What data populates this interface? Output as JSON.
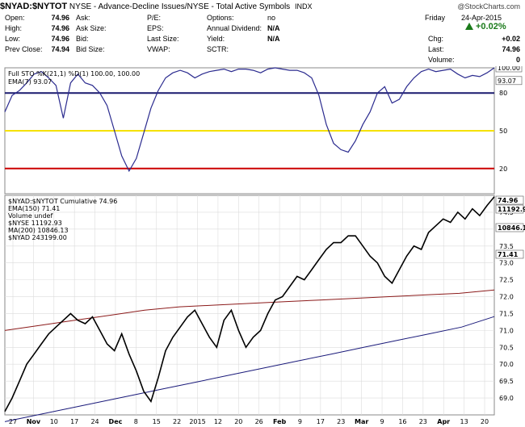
{
  "header": {
    "symbol": "$NYAD:$NYTOT",
    "description": "NYSE - Advance-Decline Issues/NYSE - Total Active Symbols",
    "exchange": "INDX",
    "watermark": "@StockCharts.com"
  },
  "quote": {
    "left": [
      {
        "label": "Open:",
        "value": "74.96"
      },
      {
        "label": "High:",
        "value": "74.96"
      },
      {
        "label": "Low:",
        "value": "74.96"
      },
      {
        "label": "Prev Close:",
        "value": "74.94"
      }
    ],
    "mid1": [
      {
        "label": "Ask:",
        "value": ""
      },
      {
        "label": "Ask Size:",
        "value": ""
      },
      {
        "label": "Bid:",
        "value": ""
      },
      {
        "label": "Bid Size:",
        "value": ""
      }
    ],
    "mid2": [
      {
        "label": "P/E:",
        "value": ""
      },
      {
        "label": "EPS:",
        "value": ""
      },
      {
        "label": "Last Size:",
        "value": ""
      },
      {
        "label": "VWAP:",
        "value": ""
      }
    ],
    "mid3": [
      {
        "label": "Options:",
        "value": "no"
      },
      {
        "label": "Annual Dividend:",
        "value": "N/A"
      },
      {
        "label": "Yield:",
        "value": "N/A"
      },
      {
        "label": "SCTR:",
        "value": ""
      }
    ],
    "right": {
      "day": "Friday",
      "date": "24-Apr-2015",
      "chg_pct": "+0.02%",
      "rows": [
        {
          "label": "Chg:",
          "value": "+0.02"
        },
        {
          "label": "Last:",
          "value": "74.96"
        },
        {
          "label": "Volume:",
          "value": "0"
        }
      ]
    }
  },
  "colors": {
    "sto": "#2b2b8f",
    "price": "#000000",
    "ema150": "#1a1a7a",
    "ma200": "#8b1a1a",
    "nyse": "#e8d08a",
    "line80": "#1a1a6e",
    "line50": "#f5e100",
    "line20": "#cc0000",
    "grid": "#dcdcdc"
  },
  "chart_data": [
    {
      "type": "line",
      "panel": "stochastic",
      "legend": [
        "Full STO %K(21,1) %D(1) 100.00, 100.00",
        "EMA(7) 93.07"
      ],
      "ylim": [
        0,
        100
      ],
      "yticks": [
        "80",
        "50",
        "20"
      ],
      "reference_lines": [
        80,
        50,
        20
      ],
      "tags": [
        "100.00",
        "93.07"
      ],
      "series": [
        {
          "name": "Full STO %K(21,1) %D(1)",
          "values": [
            65,
            78,
            82,
            88,
            95,
            97,
            92,
            86,
            60,
            88,
            95,
            88,
            86,
            80,
            70,
            50,
            30,
            18,
            28,
            48,
            68,
            82,
            92,
            96,
            98,
            96,
            92,
            95,
            97,
            98,
            99,
            97,
            99,
            99,
            98,
            96,
            99,
            100,
            99,
            98,
            98,
            96,
            92,
            78,
            55,
            40,
            35,
            33,
            42,
            55,
            65,
            80,
            85,
            72,
            75,
            85,
            92,
            97,
            99,
            97,
            98,
            99,
            95,
            92,
            94,
            93,
            96,
            100
          ]
        }
      ]
    },
    {
      "type": "line",
      "panel": "price",
      "legend": [
        "$NYAD:$NYTOT Cumulative 74.96",
        "EMA(150) 71.41",
        "Volume undef",
        "$NYSE 11192.93",
        "MA(200) 10846.13",
        "$NYAD 243199.00"
      ],
      "ylim": [
        68.5,
        75.0
      ],
      "yticks": [
        "74.5",
        "74.0",
        "73.5",
        "73.0",
        "72.5",
        "72.0",
        "71.5",
        "71.0",
        "70.5",
        "70.0",
        "69.5",
        "69.0"
      ],
      "tags": [
        "74.96",
        "11192.9",
        "10846.1",
        "71.41"
      ],
      "x_tick_labels": [
        "27",
        "Nov",
        "10",
        "17",
        "24",
        "Dec",
        "8",
        "15",
        "22",
        "2015",
        "12",
        "20",
        "26",
        "Feb",
        "9",
        "17",
        "23",
        "Mar",
        "9",
        "16",
        "23",
        "Apr",
        "13",
        "20"
      ],
      "series": [
        {
          "name": "$NYAD:$NYTOT Cumulative",
          "values": [
            68.6,
            69.0,
            69.5,
            70.0,
            70.3,
            70.6,
            70.9,
            71.1,
            71.3,
            71.5,
            71.3,
            71.2,
            71.4,
            71.0,
            70.6,
            70.4,
            70.9,
            70.3,
            69.8,
            69.2,
            68.9,
            69.6,
            70.4,
            70.8,
            71.1,
            71.4,
            71.6,
            71.2,
            70.8,
            70.5,
            71.3,
            71.6,
            71.0,
            70.5,
            70.8,
            71.0,
            71.5,
            71.9,
            72.0,
            72.3,
            72.6,
            72.5,
            72.8,
            73.1,
            73.4,
            73.6,
            73.6,
            73.8,
            73.8,
            73.5,
            73.2,
            73.0,
            72.6,
            72.4,
            72.8,
            73.2,
            73.5,
            73.4,
            73.9,
            74.1,
            74.3,
            74.2,
            74.5,
            74.3,
            74.6,
            74.4,
            74.7,
            74.96
          ]
        },
        {
          "name": "EMA(150)",
          "values": [
            68.3,
            68.5,
            68.7,
            68.9,
            69.1,
            69.3,
            69.5,
            69.7,
            69.9,
            70.1,
            70.3,
            70.5,
            70.7,
            70.9,
            71.1,
            71.41
          ]
        },
        {
          "name": "MA(200)",
          "values": [
            71.0,
            71.15,
            71.3,
            71.45,
            71.6,
            71.7,
            71.75,
            71.8,
            71.85,
            71.9,
            71.95,
            72.0,
            72.05,
            72.1,
            72.2
          ]
        }
      ]
    }
  ]
}
